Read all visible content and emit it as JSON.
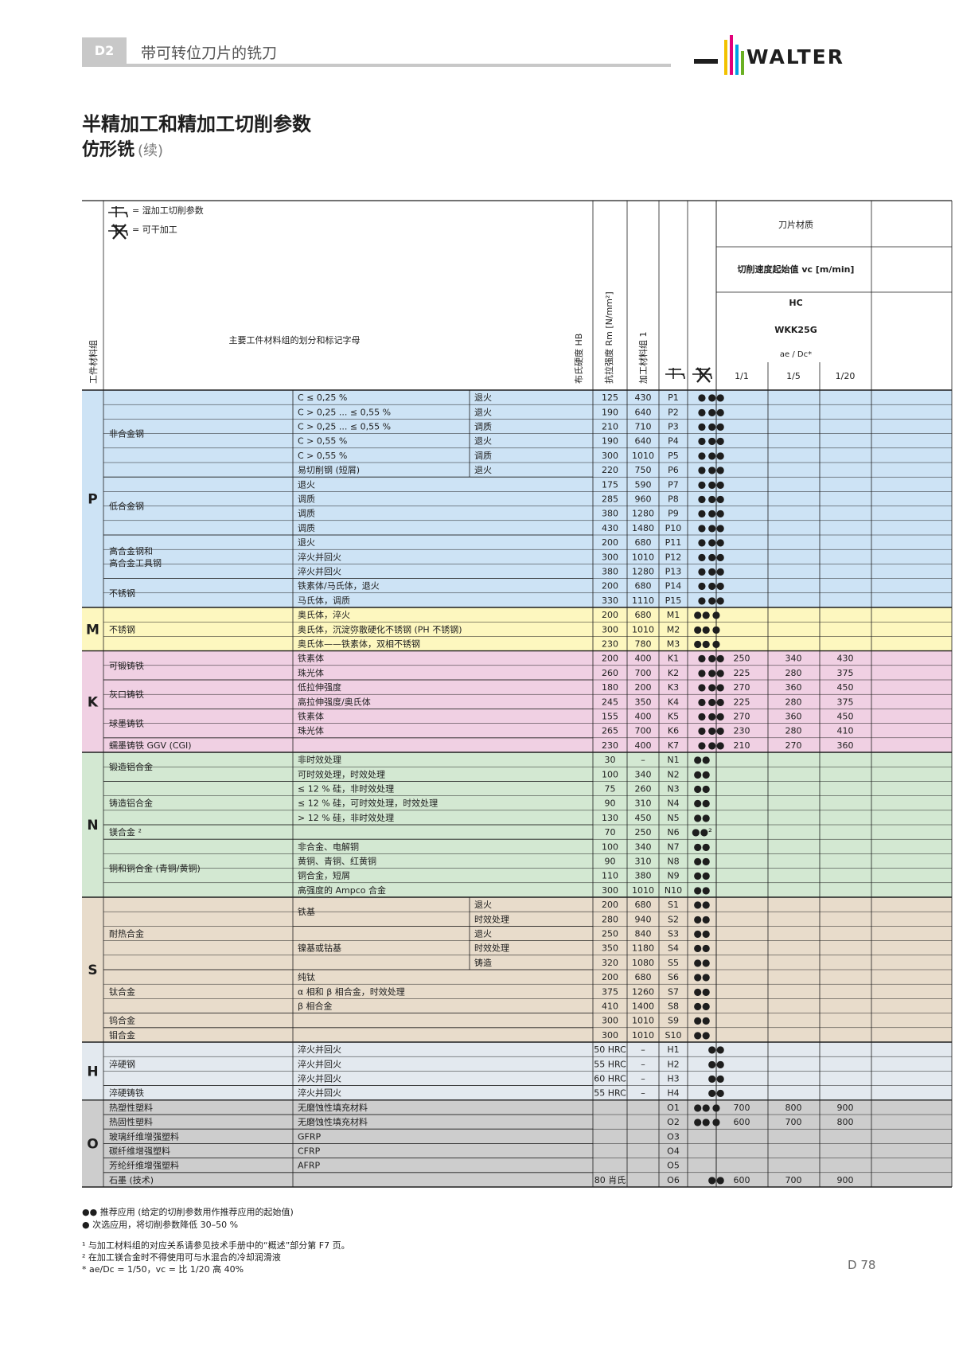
{
  "header": {
    "chapter": "D2",
    "chapter_title": "带可转位刀片的铣刀",
    "brand": "WALTER",
    "logo_colors": [
      "#f2c200",
      "#e2007a",
      "#009fe3",
      "#6ab023"
    ]
  },
  "titles": {
    "main": "半精加工和精加工切削参数",
    "sub": "仿形铣",
    "sub_note": "(续)"
  },
  "legend": {
    "wet": "= 湿加工切削参数",
    "dry": "= 可干加工"
  },
  "table_header": {
    "group_col": "工件材料组",
    "main_col": "主要工件材料组的划分和标记字母",
    "hb": "布氏硬度 HB",
    "rm": "抗拉强度 Rm [N/mm²]",
    "mgroup": "加工材料组 1",
    "insert_material": "刀片材质",
    "vc": "切削速度起始值 vc [m/min]",
    "hc": "HC",
    "grade": "WKK25G",
    "ae_dc": "ae / Dc*",
    "ratios": [
      "1/1",
      "1/5",
      "1/20"
    ]
  },
  "colors": {
    "P": "#cde3f5",
    "M": "#fdf7bf",
    "K": "#f0d0e3",
    "N": "#d3e8d2",
    "S": "#e8dccb",
    "H": "#e3e9ef",
    "O": "#cdcdcd"
  },
  "groups": [
    {
      "letter": "P",
      "span": [
        0,
        14
      ]
    },
    {
      "letter": "M",
      "span": [
        15,
        17
      ]
    },
    {
      "letter": "K",
      "span": [
        18,
        24
      ]
    },
    {
      "letter": "N",
      "span": [
        25,
        34
      ]
    },
    {
      "letter": "S",
      "span": [
        35,
        44
      ]
    },
    {
      "letter": "H",
      "span": [
        45,
        48
      ]
    },
    {
      "letter": "O",
      "span": [
        49,
        54
      ]
    }
  ],
  "subgroups": [
    {
      "text": "非合金钢",
      "span": [
        0,
        5
      ]
    },
    {
      "text": "低合金钢",
      "span": [
        6,
        9
      ]
    },
    {
      "text": "高合金钢和\n高合金工具钢",
      "span": [
        10,
        12
      ]
    },
    {
      "text": "不锈钢",
      "span": [
        13,
        14
      ]
    },
    {
      "text": "不锈钢",
      "span": [
        15,
        17
      ]
    },
    {
      "text": "可锻铸铁",
      "span": [
        18,
        19
      ]
    },
    {
      "text": "灰口铸铁",
      "span": [
        20,
        21
      ]
    },
    {
      "text": "球墨铸铁",
      "span": [
        22,
        23
      ]
    },
    {
      "text": "蠕墨铸铁 GGV (CGI)",
      "span": [
        24,
        24
      ]
    },
    {
      "text": "锻造铝合金",
      "span": [
        25,
        26
      ]
    },
    {
      "text": "铸造铝合金",
      "span": [
        27,
        29
      ]
    },
    {
      "text": "镁合金 ²",
      "span": [
        30,
        30
      ]
    },
    {
      "text": "铜和铜合金 (青铜/黄铜)",
      "span": [
        31,
        34
      ]
    },
    {
      "text": "耐热合金",
      "span": [
        35,
        39
      ]
    },
    {
      "text": "钛合金",
      "span": [
        40,
        42
      ]
    },
    {
      "text": "钨合金",
      "span": [
        43,
        43
      ]
    },
    {
      "text": "钼合金",
      "span": [
        44,
        44
      ]
    },
    {
      "text": "淬硬钢",
      "span": [
        45,
        47
      ]
    },
    {
      "text": "淬硬铸铁",
      "span": [
        48,
        48
      ]
    },
    {
      "text": "热塑性塑料",
      "span": [
        49,
        49
      ]
    },
    {
      "text": "热固性塑料",
      "span": [
        50,
        50
      ]
    },
    {
      "text": "玻璃纤维增强塑料",
      "span": [
        51,
        51
      ]
    },
    {
      "text": "碳纤维增强塑料",
      "span": [
        52,
        52
      ]
    },
    {
      "text": "芳纶纤维增强塑料",
      "span": [
        53,
        53
      ]
    },
    {
      "text": "石墨 (技术)",
      "span": [
        54,
        54
      ]
    }
  ],
  "merged_desc": [
    {
      "text": "铁基",
      "span": [
        35,
        36
      ]
    },
    {
      "text": "镍基或钴基",
      "span": [
        37,
        39
      ]
    }
  ],
  "rows": [
    {
      "d": "C ≤ 0,25 %",
      "c": "退火",
      "hb": "125",
      "rm": "430",
      "g": "P1",
      "wet": "●",
      "dry": "●●",
      "v": [
        "",
        "",
        ""
      ]
    },
    {
      "d": "C > 0,25 ... ≤ 0,55 %",
      "c": "退火",
      "hb": "190",
      "rm": "640",
      "g": "P2",
      "wet": "●",
      "dry": "●●",
      "v": [
        "",
        "",
        ""
      ]
    },
    {
      "d": "C > 0,25 ... ≤ 0,55 %",
      "c": "调质",
      "hb": "210",
      "rm": "710",
      "g": "P3",
      "wet": "●",
      "dry": "●●",
      "v": [
        "",
        "",
        ""
      ]
    },
    {
      "d": "C > 0,55 %",
      "c": "退火",
      "hb": "190",
      "rm": "640",
      "g": "P4",
      "wet": "●",
      "dry": "●●",
      "v": [
        "",
        "",
        ""
      ]
    },
    {
      "d": "C > 0,55 %",
      "c": "调质",
      "hb": "300",
      "rm": "1010",
      "g": "P5",
      "wet": "●",
      "dry": "●●",
      "v": [
        "",
        "",
        ""
      ]
    },
    {
      "d": "易切削钢 (短屑)",
      "c": "退火",
      "hb": "220",
      "rm": "750",
      "g": "P6",
      "wet": "●",
      "dry": "●●",
      "v": [
        "",
        "",
        ""
      ]
    },
    {
      "d": "退火",
      "c": "",
      "hb": "175",
      "rm": "590",
      "g": "P7",
      "wet": "●",
      "dry": "●●",
      "v": [
        "",
        "",
        ""
      ]
    },
    {
      "d": "调质",
      "c": "",
      "hb": "285",
      "rm": "960",
      "g": "P8",
      "wet": "●",
      "dry": "●●",
      "v": [
        "",
        "",
        ""
      ]
    },
    {
      "d": "调质",
      "c": "",
      "hb": "380",
      "rm": "1280",
      "g": "P9",
      "wet": "●",
      "dry": "●●",
      "v": [
        "",
        "",
        ""
      ]
    },
    {
      "d": "调质",
      "c": "",
      "hb": "430",
      "rm": "1480",
      "g": "P10",
      "wet": "●",
      "dry": "●●",
      "v": [
        "",
        "",
        ""
      ]
    },
    {
      "d": "退火",
      "c": "",
      "hb": "200",
      "rm": "680",
      "g": "P11",
      "wet": "●",
      "dry": "●●",
      "v": [
        "",
        "",
        ""
      ]
    },
    {
      "d": "淬火并回火",
      "c": "",
      "hb": "300",
      "rm": "1010",
      "g": "P12",
      "wet": "●",
      "dry": "●●",
      "v": [
        "",
        "",
        ""
      ]
    },
    {
      "d": "淬火并回火",
      "c": "",
      "hb": "380",
      "rm": "1280",
      "g": "P13",
      "wet": "●",
      "dry": "●●",
      "v": [
        "",
        "",
        ""
      ]
    },
    {
      "d": "铁素体/马氏体，退火",
      "c": "",
      "hb": "200",
      "rm": "680",
      "g": "P14",
      "wet": "●",
      "dry": "●●",
      "v": [
        "",
        "",
        ""
      ]
    },
    {
      "d": "马氏体，调质",
      "c": "",
      "hb": "330",
      "rm": "1110",
      "g": "P15",
      "wet": "●",
      "dry": "●●",
      "v": [
        "",
        "",
        ""
      ]
    },
    {
      "d": "奥氏体，淬火",
      "c": "",
      "hb": "200",
      "rm": "680",
      "g": "M1",
      "wet": "●●",
      "dry": "●",
      "v": [
        "",
        "",
        ""
      ]
    },
    {
      "d": "奥氏体，沉淀弥散硬化不锈钢 (PH 不锈钢)",
      "c": "",
      "hb": "300",
      "rm": "1010",
      "g": "M2",
      "wet": "●●",
      "dry": "●",
      "v": [
        "",
        "",
        ""
      ]
    },
    {
      "d": "奥氏体——铁素体，双相不锈钢",
      "c": "",
      "hb": "230",
      "rm": "780",
      "g": "M3",
      "wet": "●●",
      "dry": "●",
      "v": [
        "",
        "",
        ""
      ]
    },
    {
      "d": "铁素体",
      "c": "",
      "hb": "200",
      "rm": "400",
      "g": "K1",
      "wet": "●",
      "dry": "●●",
      "v": [
        "250",
        "340",
        "430"
      ]
    },
    {
      "d": "珠光体",
      "c": "",
      "hb": "260",
      "rm": "700",
      "g": "K2",
      "wet": "●",
      "dry": "●●",
      "v": [
        "225",
        "280",
        "375"
      ]
    },
    {
      "d": "低拉伸强度",
      "c": "",
      "hb": "180",
      "rm": "200",
      "g": "K3",
      "wet": "●",
      "dry": "●●",
      "v": [
        "270",
        "360",
        "450"
      ]
    },
    {
      "d": "高拉伸强度/奥氏体",
      "c": "",
      "hb": "245",
      "rm": "350",
      "g": "K4",
      "wet": "●",
      "dry": "●●",
      "v": [
        "225",
        "280",
        "375"
      ]
    },
    {
      "d": "铁素体",
      "c": "",
      "hb": "155",
      "rm": "400",
      "g": "K5",
      "wet": "●",
      "dry": "●●",
      "v": [
        "270",
        "360",
        "450"
      ]
    },
    {
      "d": "珠光体",
      "c": "",
      "hb": "265",
      "rm": "700",
      "g": "K6",
      "wet": "●",
      "dry": "●●",
      "v": [
        "230",
        "280",
        "410"
      ]
    },
    {
      "d": "",
      "c": "",
      "hb": "230",
      "rm": "400",
      "g": "K7",
      "wet": "●",
      "dry": "●●",
      "v": [
        "210",
        "270",
        "360"
      ]
    },
    {
      "d": "非时效处理",
      "c": "",
      "hb": "30",
      "rm": "–",
      "g": "N1",
      "wet": "●●",
      "dry": "",
      "v": [
        "",
        "",
        ""
      ]
    },
    {
      "d": "可时效处理，时效处理",
      "c": "",
      "hb": "100",
      "rm": "340",
      "g": "N2",
      "wet": "●●",
      "dry": "",
      "v": [
        "",
        "",
        ""
      ]
    },
    {
      "d": "≤ 12 % 硅，非时效处理",
      "c": "",
      "hb": "75",
      "rm": "260",
      "g": "N3",
      "wet": "●●",
      "dry": "",
      "v": [
        "",
        "",
        ""
      ]
    },
    {
      "d": "≤ 12 % 硅，可时效处理，时效处理",
      "c": "",
      "hb": "90",
      "rm": "310",
      "g": "N4",
      "wet": "●●",
      "dry": "",
      "v": [
        "",
        "",
        ""
      ]
    },
    {
      "d": "> 12 % 硅，非时效处理",
      "c": "",
      "hb": "130",
      "rm": "450",
      "g": "N5",
      "wet": "●●",
      "dry": "",
      "v": [
        "",
        "",
        ""
      ]
    },
    {
      "d": "",
      "c": "",
      "hb": "70",
      "rm": "250",
      "g": "N6",
      "wet": "●●²",
      "dry": "",
      "v": [
        "",
        "",
        ""
      ]
    },
    {
      "d": "非合金、电解铜",
      "c": "",
      "hb": "100",
      "rm": "340",
      "g": "N7",
      "wet": "●●",
      "dry": "",
      "v": [
        "",
        "",
        ""
      ]
    },
    {
      "d": "黄铜、青铜、红黄铜",
      "c": "",
      "hb": "90",
      "rm": "310",
      "g": "N8",
      "wet": "●●",
      "dry": "",
      "v": [
        "",
        "",
        ""
      ]
    },
    {
      "d": "铜合金，短屑",
      "c": "",
      "hb": "110",
      "rm": "380",
      "g": "N9",
      "wet": "●●",
      "dry": "",
      "v": [
        "",
        "",
        ""
      ]
    },
    {
      "d": "高强度的 Ampco 合金",
      "c": "",
      "hb": "300",
      "rm": "1010",
      "g": "N10",
      "wet": "●●",
      "dry": "",
      "v": [
        "",
        "",
        ""
      ]
    },
    {
      "d": "",
      "c": "退火",
      "hb": "200",
      "rm": "680",
      "g": "S1",
      "wet": "●●",
      "dry": "",
      "v": [
        "",
        "",
        ""
      ]
    },
    {
      "d": "",
      "c": "时效处理",
      "hb": "280",
      "rm": "940",
      "g": "S2",
      "wet": "●●",
      "dry": "",
      "v": [
        "",
        "",
        ""
      ]
    },
    {
      "d": "",
      "c": "退火",
      "hb": "250",
      "rm": "840",
      "g": "S3",
      "wet": "●●",
      "dry": "",
      "v": [
        "",
        "",
        ""
      ]
    },
    {
      "d": "",
      "c": "时效处理",
      "hb": "350",
      "rm": "1180",
      "g": "S4",
      "wet": "●●",
      "dry": "",
      "v": [
        "",
        "",
        ""
      ]
    },
    {
      "d": "",
      "c": "铸造",
      "hb": "320",
      "rm": "1080",
      "g": "S5",
      "wet": "●●",
      "dry": "",
      "v": [
        "",
        "",
        ""
      ]
    },
    {
      "d": "纯钛",
      "c": "",
      "hb": "200",
      "rm": "680",
      "g": "S6",
      "wet": "●●",
      "dry": "",
      "v": [
        "",
        "",
        ""
      ]
    },
    {
      "d": "α 相和 β 相合金，时效处理",
      "c": "",
      "hb": "375",
      "rm": "1260",
      "g": "S7",
      "wet": "●●",
      "dry": "",
      "v": [
        "",
        "",
        ""
      ]
    },
    {
      "d": "β 相合金",
      "c": "",
      "hb": "410",
      "rm": "1400",
      "g": "S8",
      "wet": "●●",
      "dry": "",
      "v": [
        "",
        "",
        ""
      ]
    },
    {
      "d": "",
      "c": "",
      "hb": "300",
      "rm": "1010",
      "g": "S9",
      "wet": "●●",
      "dry": "",
      "v": [
        "",
        "",
        ""
      ]
    },
    {
      "d": "",
      "c": "",
      "hb": "300",
      "rm": "1010",
      "g": "S10",
      "wet": "●●",
      "dry": "",
      "v": [
        "",
        "",
        ""
      ]
    },
    {
      "d": "淬火并回火",
      "c": "",
      "hb": "50 HRC",
      "rm": "–",
      "g": "H1",
      "wet": "",
      "dry": "●●",
      "v": [
        "",
        "",
        ""
      ]
    },
    {
      "d": "淬火并回火",
      "c": "",
      "hb": "55 HRC",
      "rm": "–",
      "g": "H2",
      "wet": "",
      "dry": "●●",
      "v": [
        "",
        "",
        ""
      ]
    },
    {
      "d": "淬火并回火",
      "c": "",
      "hb": "60 HRC",
      "rm": "–",
      "g": "H3",
      "wet": "",
      "dry": "●●",
      "v": [
        "",
        "",
        ""
      ]
    },
    {
      "d": "淬火并回火",
      "c": "",
      "hb": "55 HRC",
      "rm": "–",
      "g": "H4",
      "wet": "",
      "dry": "●●",
      "v": [
        "",
        "",
        ""
      ]
    },
    {
      "d": "无磨蚀性填充材料",
      "c": "",
      "hb": "",
      "rm": "",
      "g": "O1",
      "wet": "●●",
      "dry": "●",
      "v": [
        "700",
        "800",
        "900"
      ]
    },
    {
      "d": "无磨蚀性填充材料",
      "c": "",
      "hb": "",
      "rm": "",
      "g": "O2",
      "wet": "●●",
      "dry": "●",
      "v": [
        "600",
        "700",
        "800"
      ]
    },
    {
      "d": "GFRP",
      "c": "",
      "hb": "",
      "rm": "",
      "g": "O3",
      "wet": "",
      "dry": "",
      "v": [
        "",
        "",
        ""
      ]
    },
    {
      "d": "CFRP",
      "c": "",
      "hb": "",
      "rm": "",
      "g": "O4",
      "wet": "",
      "dry": "",
      "v": [
        "",
        "",
        ""
      ]
    },
    {
      "d": "AFRP",
      "c": "",
      "hb": "",
      "rm": "",
      "g": "O5",
      "wet": "",
      "dry": "",
      "v": [
        "",
        "",
        ""
      ]
    },
    {
      "d": "",
      "c": "",
      "hb": "80 肖氏",
      "rm": "",
      "g": "O6",
      "wet": "",
      "dry": "●●",
      "v": [
        "600",
        "700",
        "900"
      ]
    }
  ],
  "footnotes": {
    "rec": "●● 推荐应用 (给定的切削参数用作推荐应用的起始值)",
    "alt": "●  次选应用，将切削参数降低 30–50 %",
    "fn1": "¹ 与加工材料组的对应关系请参见技术手册中的“概述”部分第 F7 页。",
    "fn2": "² 在加工镁合金时不得使用可与水混合的冷却润滑液",
    "fn3": "* ae/Dc = 1/50，vc = 比 1/20 高 40%"
  },
  "page_number": "D 78"
}
